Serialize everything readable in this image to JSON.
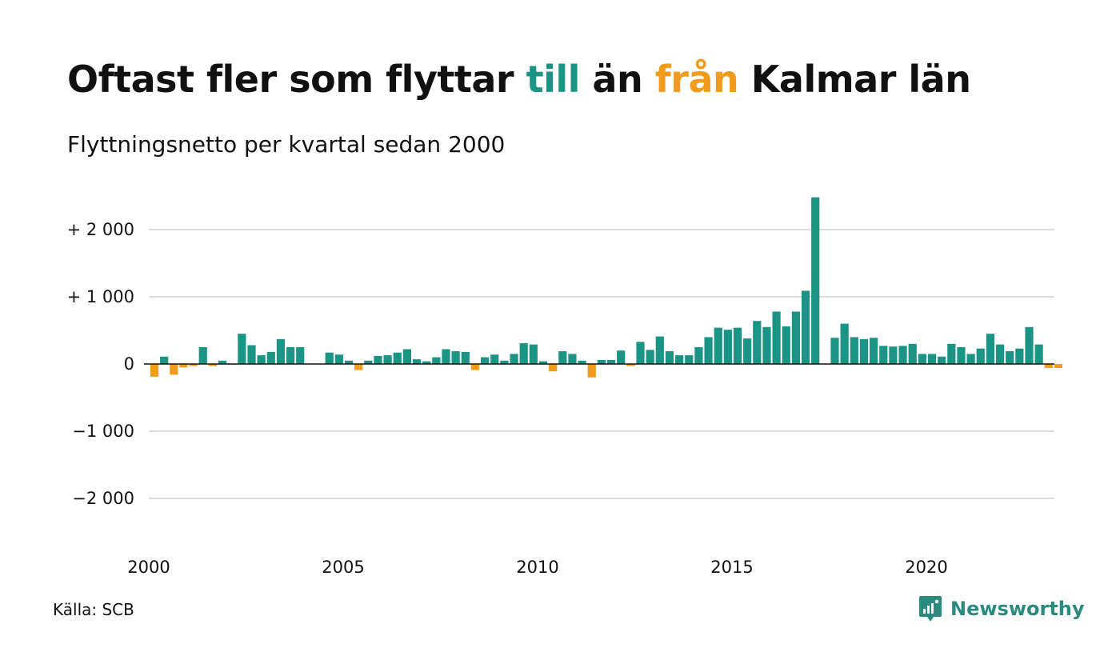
{
  "title": {
    "part1": "Oftast fler som flyttar ",
    "till": "till",
    "part2": " än ",
    "fran": "från",
    "part3": " Kalmar län"
  },
  "subtitle": "Flyttningsnetto per kvartal sedan 2000",
  "source": "Källa: SCB",
  "brand": "Newsworthy",
  "colors": {
    "positive": "#1a9485",
    "negative": "#f29c1f",
    "text": "#111111",
    "grid": "#dddddd",
    "brand": "#2b8a80"
  },
  "chart_data": {
    "type": "bar",
    "title": "Oftast fler som flyttar till än från Kalmar län",
    "subtitle": "Flyttningsnetto per kvartal sedan 2000",
    "start_year": 2000,
    "periods_per_year": 4,
    "ylim": [
      -2500,
      2500
    ],
    "yticks": [
      2000,
      1000,
      0,
      -1000,
      -2000
    ],
    "ytick_labels": [
      "+ 2 000",
      "+ 1 000",
      "0",
      "−1 000",
      "−2 000"
    ],
    "xticks": [
      2000,
      2005,
      2010,
      2015,
      2020
    ],
    "xtick_labels": [
      "2000",
      "2005",
      "2010",
      "2015",
      "2020"
    ],
    "grid": true,
    "values": [
      -190,
      110,
      -160,
      -50,
      -30,
      250,
      -30,
      50,
      -10,
      450,
      280,
      130,
      180,
      370,
      250,
      250,
      0,
      0,
      170,
      140,
      50,
      -90,
      50,
      120,
      130,
      170,
      220,
      70,
      40,
      100,
      220,
      190,
      180,
      -90,
      100,
      140,
      50,
      150,
      310,
      290,
      40,
      -110,
      190,
      150,
      50,
      -200,
      60,
      60,
      200,
      -30,
      330,
      210,
      410,
      190,
      130,
      130,
      250,
      400,
      540,
      510,
      540,
      380,
      640,
      550,
      780,
      560,
      780,
      1090,
      2480,
      0,
      390,
      600,
      400,
      370,
      390,
      270,
      260,
      270,
      300,
      150,
      150,
      110,
      300,
      250,
      150,
      230,
      450,
      290,
      190,
      230,
      550,
      290,
      -60,
      -60
    ]
  }
}
